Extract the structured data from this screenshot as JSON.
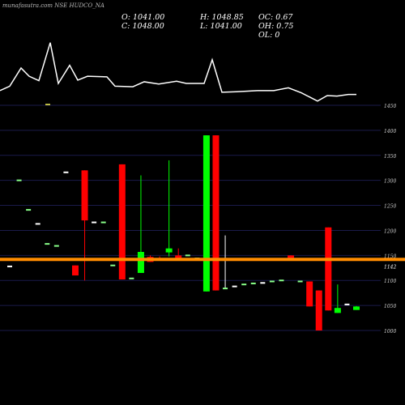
{
  "header": {
    "watermark": "munafasutra.com NSE HUDCO_NA",
    "open": "O: 1041.00",
    "high": "H: 1048.85",
    "oc": "OC: 0.67",
    "close": "C: 1048.00",
    "low": "L: 1041.00",
    "oh": "OH: 0.75",
    "ol": "OL: 0"
  },
  "chart_data": {
    "type": "candlestick",
    "colors": {
      "up": "#00ff00",
      "down": "#ff0000",
      "neutral": "#ffffff",
      "grid": "#1a1a4a",
      "line": "#ffffff",
      "price_line": "#ff8c00"
    },
    "y_ticks": [
      1000,
      1050,
      1100,
      1150,
      1200,
      1250,
      1300,
      1350,
      1400,
      1450
    ],
    "tick_labels": [
      "1000",
      "1050",
      "1100",
      "1150",
      "1200",
      "1250",
      "1300",
      "1350",
      "1400",
      "1450"
    ],
    "price_line_value": 1142,
    "price_line_label": "1142",
    "candles": [
      {
        "o": 1128,
        "h": 1128,
        "l": 1128,
        "c": 1128
      },
      {
        "o": 1300,
        "h": 1300,
        "l": 1300,
        "c": 1300
      },
      {
        "o": 1241,
        "h": 1241,
        "l": 1241,
        "c": 1241
      },
      {
        "o": 1213,
        "h": 1213,
        "l": 1213,
        "c": 1213
      },
      {
        "o": 1173,
        "h": 1173,
        "l": 1173,
        "c": 1173
      },
      {
        "o": 1169,
        "h": 1169,
        "l": 1169,
        "c": 1169
      },
      {
        "o": 1316,
        "h": 1316,
        "l": 1316,
        "c": 1316
      },
      {
        "o": 1130,
        "h": 1130,
        "l": 1110,
        "c": 1110
      },
      {
        "o": 1320,
        "h": 1320,
        "l": 1100,
        "c": 1220
      },
      {
        "o": 1216,
        "h": 1216,
        "l": 1216,
        "c": 1216
      },
      {
        "o": 1216,
        "h": 1216,
        "l": 1216,
        "c": 1216
      },
      {
        "o": 1130,
        "h": 1130,
        "l": 1130,
        "c": 1130
      },
      {
        "o": 1332,
        "h": 1332,
        "l": 1102,
        "c": 1102
      },
      {
        "o": 1104,
        "h": 1104,
        "l": 1104,
        "c": 1104
      },
      {
        "o": 1115,
        "h": 1310,
        "l": 1115,
        "c": 1157
      },
      {
        "o": 1147,
        "h": 1150,
        "l": 1137,
        "c": 1137
      },
      {
        "o": 1144,
        "h": 1148,
        "l": 1140,
        "c": 1140
      },
      {
        "o": 1156,
        "h": 1340,
        "l": 1148,
        "c": 1164
      },
      {
        "o": 1150,
        "h": 1164,
        "l": 1142,
        "c": 1142
      },
      {
        "o": 1150,
        "h": 1150,
        "l": 1150,
        "c": 1150
      },
      {
        "o": 1144,
        "h": 1144,
        "l": 1144,
        "c": 1144
      },
      {
        "o": 1078,
        "h": 1390,
        "l": 1078,
        "c": 1390
      },
      {
        "o": 1390,
        "h": 1390,
        "l": 1080,
        "c": 1080
      },
      {
        "o": 1084,
        "h": 1190,
        "l": 1084,
        "c": 1084
      },
      {
        "o": 1088,
        "h": 1088,
        "l": 1088,
        "c": 1088
      },
      {
        "o": 1092,
        "h": 1092,
        "l": 1092,
        "c": 1092
      },
      {
        "o": 1094,
        "h": 1094,
        "l": 1094,
        "c": 1094
      },
      {
        "o": 1095,
        "h": 1095,
        "l": 1095,
        "c": 1095
      },
      {
        "o": 1098,
        "h": 1098,
        "l": 1098,
        "c": 1098
      },
      {
        "o": 1100,
        "h": 1100,
        "l": 1100,
        "c": 1100
      },
      {
        "o": 1150,
        "h": 1150,
        "l": 1145,
        "c": 1145
      },
      {
        "o": 1098,
        "h": 1098,
        "l": 1098,
        "c": 1098
      },
      {
        "o": 1098,
        "h": 1098,
        "l": 1048,
        "c": 1048
      },
      {
        "o": 1080,
        "h": 1080,
        "l": 1000,
        "c": 1000
      },
      {
        "o": 1206,
        "h": 1206,
        "l": 1040,
        "c": 1040
      },
      {
        "o": 1035,
        "h": 1092,
        "l": 1035,
        "c": 1045
      },
      {
        "o": 1052,
        "h": 1052,
        "l": 1052,
        "c": 1052
      },
      {
        "o": 1041,
        "h": 1048.85,
        "l": 1041,
        "c": 1048
      }
    ],
    "line_series": [
      {
        "x": 0,
        "y": 0.12
      },
      {
        "x": 12,
        "y": 0.2
      },
      {
        "x": 26,
        "y": 0.53
      },
      {
        "x": 36,
        "y": 0.38
      },
      {
        "x": 48,
        "y": 0.3
      },
      {
        "x": 62,
        "y": 0.99
      },
      {
        "x": 72,
        "y": 0.25
      },
      {
        "x": 86,
        "y": 0.58
      },
      {
        "x": 96,
        "y": 0.31
      },
      {
        "x": 108,
        "y": 0.38
      },
      {
        "x": 132,
        "y": 0.37
      },
      {
        "x": 142,
        "y": 0.2
      },
      {
        "x": 164,
        "y": 0.19
      },
      {
        "x": 178,
        "y": 0.28
      },
      {
        "x": 196,
        "y": 0.24
      },
      {
        "x": 218,
        "y": 0.29
      },
      {
        "x": 230,
        "y": 0.25
      },
      {
        "x": 252,
        "y": 0.25
      },
      {
        "x": 262,
        "y": 0.68
      },
      {
        "x": 274,
        "y": 0.09
      },
      {
        "x": 292,
        "y": 0.1
      },
      {
        "x": 318,
        "y": 0.12
      },
      {
        "x": 338,
        "y": 0.12
      },
      {
        "x": 356,
        "y": 0.17
      },
      {
        "x": 372,
        "y": 0.08
      },
      {
        "x": 392,
        "y": -0.07
      },
      {
        "x": 404,
        "y": 0.03
      },
      {
        "x": 416,
        "y": 0.02
      },
      {
        "x": 430,
        "y": 0.05
      },
      {
        "x": 440,
        "y": 0.05
      }
    ]
  }
}
